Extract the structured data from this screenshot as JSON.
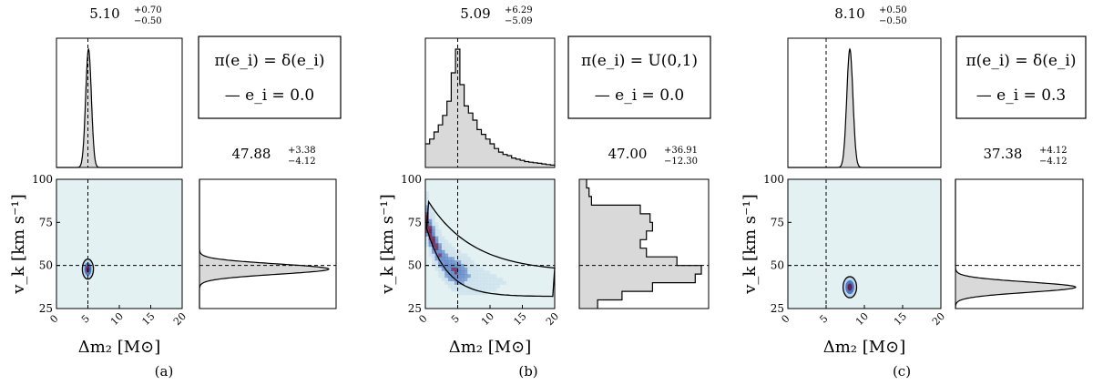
{
  "chart_data": [
    {
      "type": "corner-plot",
      "panel_label": "(a)",
      "prior_label": "π(e_i) = δ(e_i)",
      "legend_label": "— e_i = 0.0",
      "x_param": {
        "label": "Δm₂ [M⊙]",
        "lim": [
          0,
          20
        ],
        "ticks": [
          0,
          5,
          10,
          15,
          20
        ],
        "truth": 5
      },
      "y_param": {
        "label": "v_k [km s⁻¹]",
        "lim": [
          25,
          100
        ],
        "ticks": [
          25,
          50,
          75,
          100
        ],
        "truth": 50
      },
      "x_summary": {
        "median": "5.10",
        "plus": "+0.70",
        "minus": "−0.50"
      },
      "y_summary": {
        "median": "47.88",
        "plus": "+3.38",
        "minus": "−4.12"
      },
      "x_posterior": {
        "shape": "gaussian",
        "center": 5.1,
        "width": 0.45
      },
      "y_posterior": {
        "shape": "gaussian",
        "center": 47.9,
        "width": 3.0
      },
      "joint": {
        "center": [
          5.0,
          47.9
        ],
        "spread": [
          0.55,
          3.6
        ]
      },
      "grid": false
    },
    {
      "type": "corner-plot",
      "panel_label": "(b)",
      "prior_label": "π(e_i) = U(0,1)",
      "legend_label": "— e_i = 0.0",
      "x_param": {
        "label": "Δm₂ [M⊙]",
        "lim": [
          0,
          20
        ],
        "ticks": [
          0,
          5,
          10,
          15,
          20
        ],
        "truth": 5
      },
      "y_param": {
        "label": "v_k [km s⁻¹]",
        "lim": [
          25,
          100
        ],
        "ticks": [
          25,
          50,
          75,
          100
        ],
        "truth": 50
      },
      "x_summary": {
        "median": "5.09",
        "plus": "+6.29",
        "minus": "−5.09"
      },
      "y_summary": {
        "median": "47.00",
        "plus": "+36.91",
        "minus": "−12.30"
      },
      "x_posterior": {
        "shape": "histogram",
        "values": [
          0.2,
          0.24,
          0.3,
          0.36,
          0.44,
          0.56,
          0.8,
          1.0,
          0.7,
          0.52,
          0.46,
          0.4,
          0.32,
          0.28,
          0.24,
          0.2,
          0.16,
          0.13,
          0.11,
          0.1,
          0.08,
          0.07,
          0.06,
          0.05,
          0.045,
          0.04,
          0.035,
          0.03,
          0.025,
          0.02
        ]
      },
      "y_posterior": {
        "shape": "histogram",
        "bins_y": [
          30,
          35,
          40,
          45,
          50,
          55,
          60,
          65,
          70,
          75,
          80,
          85,
          90,
          95,
          100
        ],
        "values": [
          0.15,
          0.35,
          0.6,
          0.95,
          1.0,
          0.8,
          0.55,
          0.5,
          0.55,
          0.6,
          0.58,
          0.5,
          0.1,
          0.08,
          0.06
        ]
      },
      "joint": {
        "density_band": "curved",
        "peak": [
          5.0,
          47.0
        ]
      },
      "grid": false
    },
    {
      "type": "corner-plot",
      "panel_label": "(c)",
      "prior_label": "π(e_i) = δ(e_i)",
      "legend_label": "— e_i = 0.3",
      "x_param": {
        "label": "Δm₂ [M⊙]",
        "lim": [
          0,
          20
        ],
        "ticks": [
          0,
          5,
          10,
          15,
          20
        ],
        "truth": 5
      },
      "y_param": {
        "label": "v_k [km s⁻¹]",
        "lim": [
          25,
          100
        ],
        "ticks": [
          25,
          50,
          75,
          100
        ],
        "truth": 50
      },
      "x_summary": {
        "median": "8.10",
        "plus": "+0.50",
        "minus": "−0.50"
      },
      "y_summary": {
        "median": "37.38",
        "plus": "+4.12",
        "minus": "−4.12"
      },
      "x_posterior": {
        "shape": "gaussian",
        "center": 8.1,
        "width": 0.4
      },
      "y_posterior": {
        "shape": "gaussian",
        "center": 37.4,
        "width": 3.0
      },
      "joint": {
        "center": [
          8.1,
          37.4
        ],
        "spread": [
          0.55,
          3.8
        ]
      },
      "grid": false
    }
  ],
  "colors": {
    "hist_fill": "#d9d9d9",
    "joint_bg": "#e4f1f3",
    "density_low": "#bcd7ea",
    "density_mid": "#4a78c4",
    "density_high": "#6b1f4f",
    "line": "#000000"
  }
}
